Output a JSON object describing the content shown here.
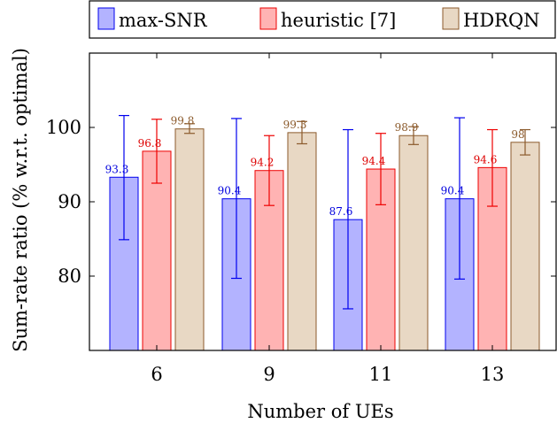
{
  "chart_data": {
    "type": "bar",
    "xlabel": "Number of UEs",
    "ylabel": "Sum-rate ratio (% w.r.t. optimal)",
    "categories": [
      "6",
      "9",
      "11",
      "13"
    ],
    "ylim": [
      70,
      110
    ],
    "yticks": [
      80,
      90,
      100
    ],
    "grid": false,
    "legend_position": "top",
    "series": [
      {
        "name": "max-SNR",
        "values": [
          93.3,
          90.4,
          87.6,
          90.4
        ],
        "labels": [
          "93.3",
          "90.4",
          "87.6",
          "90.4"
        ],
        "err_low": [
          84.9,
          79.7,
          75.6,
          79.6
        ],
        "err_high": [
          101.6,
          101.2,
          99.7,
          101.3
        ],
        "fill": "#b3b3ff",
        "stroke": "#0000ee",
        "label_color": "#0000dd"
      },
      {
        "name": "heuristic [7]",
        "values": [
          96.8,
          94.2,
          94.4,
          94.6
        ],
        "labels": [
          "96.8",
          "94.2",
          "94.4",
          "94.6"
        ],
        "err_low": [
          92.5,
          89.5,
          89.6,
          89.4
        ],
        "err_high": [
          101.1,
          98.9,
          99.2,
          99.7
        ],
        "fill": "#ffb3b3",
        "stroke": "#ee0000",
        "label_color": "#dd0000"
      },
      {
        "name": "HDRQN",
        "values": [
          99.8,
          99.3,
          98.9,
          98
        ],
        "labels": [
          "99.8",
          "99.3",
          "98.9",
          "98"
        ],
        "err_low": [
          99.2,
          97.8,
          97.7,
          96.3
        ],
        "err_high": [
          100.5,
          100.8,
          100.1,
          99.7
        ],
        "fill": "#e8d8c4",
        "stroke": "#8b5a2b",
        "label_color": "#8b5a2b"
      }
    ]
  }
}
